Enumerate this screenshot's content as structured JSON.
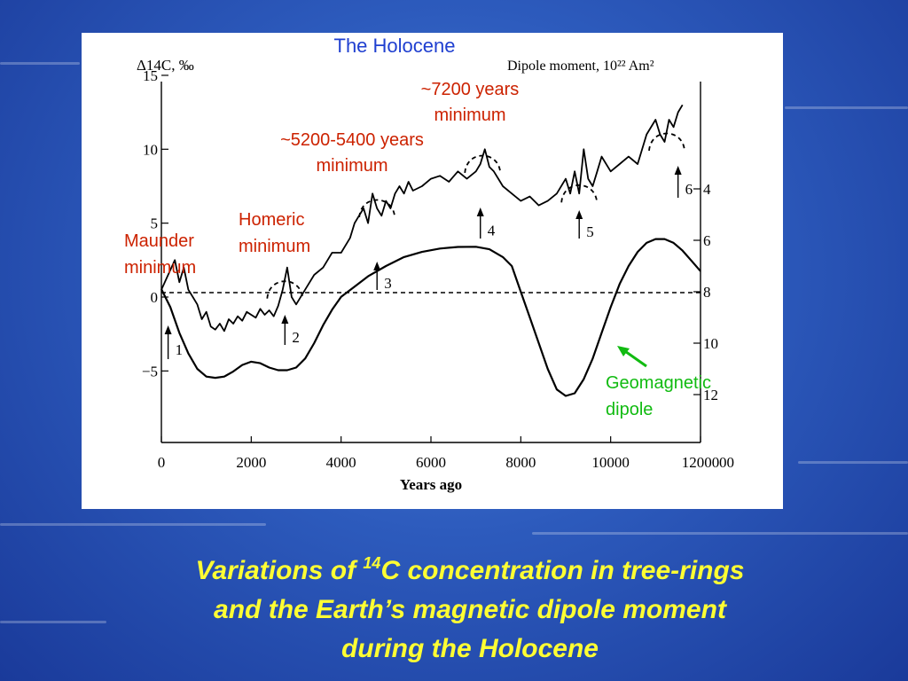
{
  "chart_data": {
    "type": "line",
    "title": "The Holocene",
    "xlabel": "Years ago",
    "ylabel_left": "Δ14C, ‰",
    "ylabel_right": "Dipole moment, 10²² Am²",
    "xlim": [
      0,
      12000
    ],
    "ylim_left": [
      -9,
      15
    ],
    "ylim_right_inverted": [
      4,
      12
    ],
    "x_ticks": [
      "0",
      "2000",
      "4000",
      "6000",
      "8000",
      "10000",
      "12000"
    ],
    "x_ticks_extra": "00",
    "y_ticks_left": [
      "15",
      "10",
      "5",
      "0",
      "−5"
    ],
    "y_ticks_right": [
      "4",
      "6",
      "8",
      "10",
      "12"
    ],
    "series": [
      {
        "name": "",
        "axis": "left",
        "x": [
          0,
          150,
          300,
          400,
          500,
          600,
          700,
          800,
          900,
          1000,
          1100,
          1200,
          1300,
          1400,
          1500,
          1600,
          1700,
          1800,
          1900,
          2000,
          2100,
          2200,
          2300,
          2400,
          2500,
          2600,
          2700,
          2800,
          2900,
          3000,
          3200,
          3400,
          3600,
          3800,
          4000,
          4200,
          4300,
          4400,
          4500,
          4600,
          4700,
          4800,
          4900,
          5000,
          5100,
          5200,
          5300,
          5400,
          5500,
          5600,
          5800,
          6000,
          6200,
          6400,
          6600,
          6800,
          7000,
          7100,
          7200,
          7300,
          7400,
          7500,
          7600,
          7800,
          8000,
          8200,
          8400,
          8600,
          8800,
          9000,
          9100,
          9200,
          9300,
          9400,
          9500,
          9600,
          9700,
          9800,
          10000,
          10200,
          10400,
          10600,
          10800,
          11000,
          11100,
          11200,
          11300,
          11400,
          11500,
          11600
        ],
        "values": [
          0.5,
          1.5,
          2.5,
          1.0,
          2.0,
          0.5,
          0.0,
          -0.5,
          -1.5,
          -1.0,
          -2.0,
          -2.2,
          -1.8,
          -2.3,
          -1.5,
          -1.8,
          -1.3,
          -1.6,
          -1.0,
          -1.2,
          -1.4,
          -0.8,
          -1.2,
          -0.9,
          -1.3,
          -0.6,
          0.5,
          2.0,
          0.0,
          -0.5,
          0.5,
          1.5,
          2.0,
          3.0,
          3.0,
          4.0,
          5.0,
          5.5,
          6.0,
          5.0,
          7.0,
          6.0,
          5.5,
          6.5,
          6.0,
          7.0,
          7.5,
          7.0,
          7.8,
          7.2,
          7.5,
          8.0,
          8.2,
          7.8,
          8.5,
          8.0,
          8.5,
          9.0,
          10.0,
          8.8,
          8.5,
          8.0,
          7.5,
          7.0,
          6.5,
          6.8,
          6.2,
          6.5,
          7.0,
          8.0,
          7.0,
          8.5,
          7.0,
          10.0,
          8.0,
          7.5,
          8.5,
          9.5,
          8.5,
          9.0,
          9.5,
          9.0,
          11.0,
          12.0,
          11.0,
          10.5,
          12.0,
          11.5,
          12.5,
          13.0
        ]
      },
      {
        "name": "Geomagnetic dipole",
        "axis": "right",
        "x": [
          0,
          200,
          400,
          600,
          800,
          1000,
          1200,
          1400,
          1600,
          1800,
          2000,
          2200,
          2400,
          2600,
          2800,
          3000,
          3200,
          3400,
          3600,
          3800,
          4000,
          4300,
          4600,
          5000,
          5400,
          5800,
          6200,
          6600,
          7000,
          7300,
          7600,
          7800,
          8000,
          8200,
          8400,
          8600,
          8800,
          9000,
          9200,
          9400,
          9600,
          9800,
          10000,
          10200,
          10400,
          10600,
          10800,
          11000,
          11200,
          11400,
          11600,
          11800,
          12000
        ],
        "values": [
          7.9,
          8.6,
          9.6,
          10.4,
          11.0,
          11.3,
          11.35,
          11.3,
          11.1,
          10.85,
          10.72,
          10.78,
          10.95,
          11.05,
          11.05,
          10.95,
          10.6,
          10.0,
          9.3,
          8.7,
          8.2,
          7.8,
          7.4,
          7.0,
          6.65,
          6.45,
          6.32,
          6.26,
          6.25,
          6.35,
          6.65,
          7.0,
          8.0,
          9.0,
          10.0,
          11.0,
          11.8,
          12.05,
          11.95,
          11.4,
          10.6,
          9.6,
          8.6,
          7.7,
          7.0,
          6.45,
          6.1,
          5.95,
          5.95,
          6.1,
          6.4,
          6.8,
          7.2
        ]
      },
      {
        "name": "",
        "axis": "left",
        "style": "dashed",
        "x": [
          0,
          12000
        ],
        "values": [
          0.3,
          0.3
        ]
      }
    ],
    "annotations": [
      {
        "text": "Maunder minimum",
        "color": "#cc2200"
      },
      {
        "text": "Homeric minimum",
        "color": "#cc2200"
      },
      {
        "text": "~5200-5400 years minimum",
        "color": "#cc2200"
      },
      {
        "text": "~7200 years minimum",
        "color": "#cc2200"
      },
      {
        "text": "Geomagnetic dipole",
        "color": "#11bb11"
      }
    ],
    "markers": [
      {
        "label": "1",
        "x": 150
      },
      {
        "label": "2",
        "x": 2750
      },
      {
        "label": "3",
        "x": 4800
      },
      {
        "label": "4",
        "x": 7100
      },
      {
        "label": "5",
        "x": 9300
      },
      {
        "label": "6",
        "x": 11500
      }
    ],
    "minima_arcs_x": [
      2750,
      4800,
      7150,
      9300,
      11250
    ]
  },
  "labels": {
    "title": "The Holocene",
    "maunder_line1": "Maunder",
    "maunder_line2": "minimum",
    "homeric_line1": "Homeric",
    "homeric_line2": "minimum",
    "m5200_line1": "~5200-5400 years",
    "m5200_line2": "minimum",
    "m7200_line1": "~7200 years",
    "m7200_line2": "minimum",
    "geo_line1": "Geomagnetic",
    "geo_line2": "dipole"
  },
  "caption": {
    "line1_pre": "Variations of ",
    "line1_sup": "14",
    "line1_post": "C concentration in tree-rings",
    "line2": "and the Earth’s magnetic dipole moment",
    "line3": "during the Holocene"
  },
  "colors": {
    "annotation_red": "#cc2200",
    "title_blue": "#1f3fd0",
    "geo_green": "#11bb11",
    "caption_yellow": "#ffff33"
  }
}
